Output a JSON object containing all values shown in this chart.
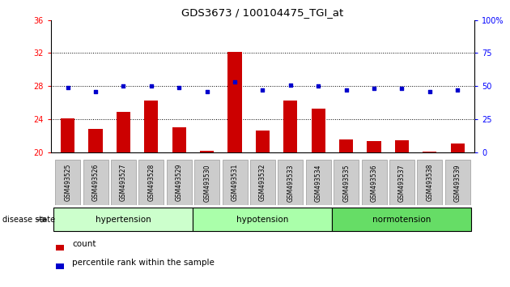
{
  "title": "GDS3673 / 100104475_TGI_at",
  "samples": [
    "GSM493525",
    "GSM493526",
    "GSM493527",
    "GSM493528",
    "GSM493529",
    "GSM493530",
    "GSM493531",
    "GSM493532",
    "GSM493533",
    "GSM493534",
    "GSM493535",
    "GSM493536",
    "GSM493537",
    "GSM493538",
    "GSM493539"
  ],
  "bar_values": [
    24.1,
    22.8,
    24.9,
    26.3,
    23.0,
    20.2,
    32.1,
    22.6,
    26.3,
    25.3,
    21.5,
    21.3,
    21.4,
    20.1,
    21.0
  ],
  "dot_values": [
    49,
    46,
    50,
    50,
    49,
    46,
    53,
    47,
    51,
    50,
    47,
    48,
    48,
    46,
    47
  ],
  "bar_color": "#cc0000",
  "dot_color": "#0000cc",
  "ylim_left": [
    20,
    36
  ],
  "ylim_right": [
    0,
    100
  ],
  "yticks_left": [
    20,
    24,
    28,
    32,
    36
  ],
  "yticks_right": [
    0,
    25,
    50,
    75,
    100
  ],
  "ytick_right_labels": [
    "0",
    "25",
    "50",
    "75",
    "100%"
  ],
  "dotted_lines": [
    24,
    28,
    32
  ],
  "groups": [
    {
      "label": "hypertension",
      "start": 0,
      "end": 5
    },
    {
      "label": "hypotension",
      "start": 5,
      "end": 10
    },
    {
      "label": "normotension",
      "start": 10,
      "end": 15
    }
  ],
  "group_colors": [
    "#ccffcc",
    "#aaffaa",
    "#66dd66"
  ],
  "disease_label": "disease state",
  "legend_bar_label": "count",
  "legend_dot_label": "percentile rank within the sample",
  "xtick_bg": "#cccccc",
  "bar_width": 0.5
}
